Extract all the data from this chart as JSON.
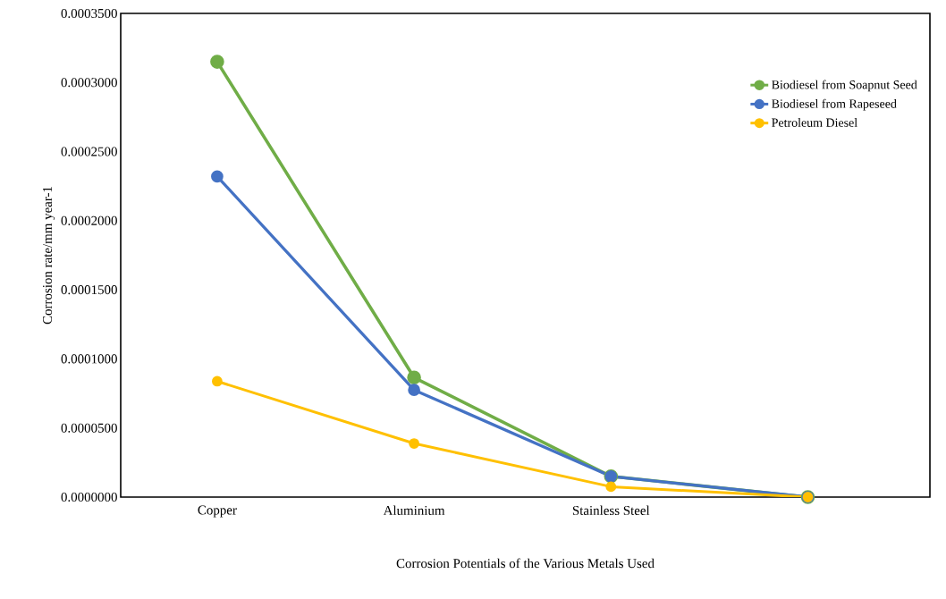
{
  "chart_data": {
    "type": "line",
    "xlabel": "Corrosion Potentials of the Various Metals Used",
    "ylabel": "Corrosion rate/mm year-1",
    "categories": [
      "Copper",
      "Aluminium",
      "Stainless Steel",
      null
    ],
    "series": [
      {
        "name": "Biodiesel from Soapnut Seed",
        "color": "#70ad47",
        "values": [
          0.000315,
          8.65e-05,
          1.5e-05,
          0
        ]
      },
      {
        "name": "Biodiesel from Rapeseed",
        "color": "#4472c4",
        "values": [
          0.000232,
          7.75e-05,
          1.5e-05,
          0
        ]
      },
      {
        "name": "Petroleum Diesel",
        "color": "#ffc000",
        "values": [
          8.38e-05,
          3.88e-05,
          7.5e-06,
          0
        ]
      }
    ],
    "ylim": [
      0,
      0.00035
    ],
    "yticks": [
      {
        "value": 0,
        "label": "0.0000000"
      },
      {
        "value": 5e-05,
        "label": "0.0000500"
      },
      {
        "value": 0.0001,
        "label": "0.0001000"
      },
      {
        "value": 0.00015,
        "label": "0.0001500"
      },
      {
        "value": 0.0002,
        "label": "0.0002000"
      },
      {
        "value": 0.00025,
        "label": "0.0002500"
      },
      {
        "value": 0.0003,
        "label": "0.0003000"
      },
      {
        "value": 0.00035,
        "label": "0.0003500"
      }
    ],
    "legend": "top right",
    "marker": "circle",
    "line_style": "solid",
    "grid": false
  }
}
